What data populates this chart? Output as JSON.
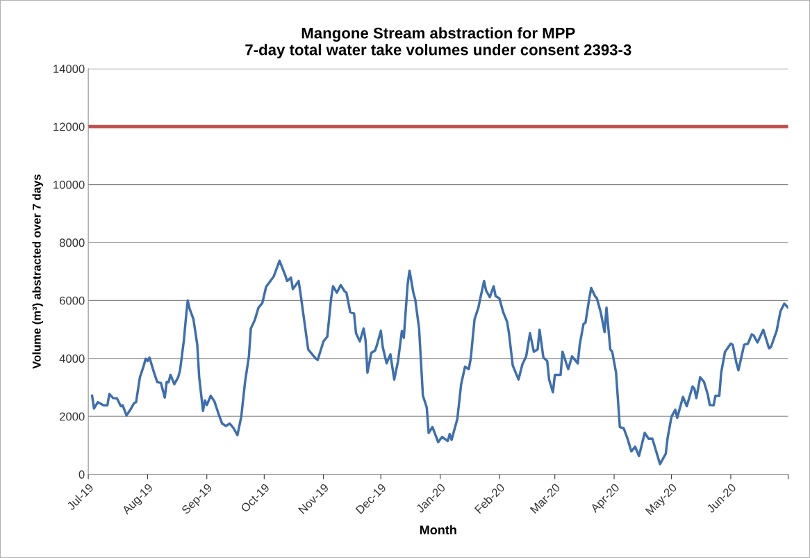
{
  "chart_data": {
    "type": "line",
    "title": "Mangone Stream abstraction for MPP\n7-day total water take volumes under consent 2393-3",
    "xlabel": "Month",
    "ylabel": "Volume (m³) abstracted over 7 days",
    "x": [
      "2019-07-03",
      "2019-07-04",
      "2019-07-06",
      "2019-07-09",
      "2019-07-11",
      "2019-07-12",
      "2019-07-14",
      "2019-07-16",
      "2019-07-18",
      "2019-07-19",
      "2019-07-21",
      "2019-07-23",
      "2019-07-25",
      "2019-07-26",
      "2019-07-28",
      "2019-07-30",
      "2019-07-31",
      "2019-08-01",
      "2019-08-02",
      "2019-08-04",
      "2019-08-06",
      "2019-08-08",
      "2019-08-10",
      "2019-08-11",
      "2019-08-12",
      "2019-08-13",
      "2019-08-15",
      "2019-08-17",
      "2019-08-18",
      "2019-08-20",
      "2019-08-21",
      "2019-08-22",
      "2019-08-23",
      "2019-08-25",
      "2019-08-27",
      "2019-08-28",
      "2019-08-30",
      "2019-08-31",
      "2019-09-01",
      "2019-09-03",
      "2019-09-05",
      "2019-09-07",
      "2019-09-09",
      "2019-09-11",
      "2019-09-13",
      "2019-09-15",
      "2019-09-17",
      "2019-09-19",
      "2019-09-21",
      "2019-09-23",
      "2019-09-24",
      "2019-09-26",
      "2019-09-28",
      "2019-09-30",
      "2019-10-02",
      "2019-10-06",
      "2019-10-09",
      "2019-10-12",
      "2019-10-13",
      "2019-10-15",
      "2019-10-16",
      "2019-10-19",
      "2019-10-20",
      "2019-10-24",
      "2019-10-28",
      "2019-10-29",
      "2019-11-01",
      "2019-11-03",
      "2019-11-05",
      "2019-11-06",
      "2019-11-08",
      "2019-11-10",
      "2019-11-12",
      "2019-11-13",
      "2019-11-15",
      "2019-11-17",
      "2019-11-18",
      "2019-11-20",
      "2019-11-22",
      "2019-11-23",
      "2019-11-24",
      "2019-11-26",
      "2019-11-28",
      "2019-11-29",
      "2019-12-01",
      "2019-12-02",
      "2019-12-04",
      "2019-12-06",
      "2019-12-08",
      "2019-12-10",
      "2019-12-12",
      "2019-12-13",
      "2019-12-15",
      "2019-12-16",
      "2019-12-18",
      "2019-12-19",
      "2019-12-21",
      "2019-12-23",
      "2019-12-25",
      "2019-12-26",
      "2019-12-28",
      "2019-12-31",
      "2020-01-02",
      "2020-01-05",
      "2020-01-06",
      "2020-01-07",
      "2020-01-10",
      "2020-01-12",
      "2020-01-14",
      "2020-01-16",
      "2020-01-17",
      "2020-01-19",
      "2020-01-21",
      "2020-01-22",
      "2020-01-24",
      "2020-01-25",
      "2020-01-27",
      "2020-01-29",
      "2020-01-30",
      "2020-02-01",
      "2020-02-03",
      "2020-02-05",
      "2020-02-06",
      "2020-02-08",
      "2020-02-11",
      "2020-02-13",
      "2020-02-15",
      "2020-02-17",
      "2020-02-19",
      "2020-02-21",
      "2020-02-22",
      "2020-02-24",
      "2020-02-26",
      "2020-02-27",
      "2020-02-29",
      "2020-03-01",
      "2020-03-04",
      "2020-03-05",
      "2020-03-08",
      "2020-03-10",
      "2020-03-13",
      "2020-03-14",
      "2020-03-16",
      "2020-03-17",
      "2020-03-19",
      "2020-03-20",
      "2020-03-22",
      "2020-03-23",
      "2020-03-25",
      "2020-03-27",
      "2020-03-28",
      "2020-03-30",
      "2020-03-31",
      "2020-04-02",
      "2020-04-04",
      "2020-04-06",
      "2020-04-08",
      "2020-04-10",
      "2020-04-12",
      "2020-04-14",
      "2020-04-17",
      "2020-04-19",
      "2020-04-21",
      "2020-04-23",
      "2020-04-25",
      "2020-04-28",
      "2020-04-29",
      "2020-05-01",
      "2020-05-03",
      "2020-05-04",
      "2020-05-07",
      "2020-05-09",
      "2020-05-12",
      "2020-05-13",
      "2020-05-14",
      "2020-05-16",
      "2020-05-18",
      "2020-05-20",
      "2020-05-21",
      "2020-05-23",
      "2020-05-24",
      "2020-05-26",
      "2020-05-27",
      "2020-05-29",
      "2020-06-01",
      "2020-06-02",
      "2020-06-04",
      "2020-06-05",
      "2020-06-08",
      "2020-06-10",
      "2020-06-12",
      "2020-06-13",
      "2020-06-15",
      "2020-06-18",
      "2020-06-21",
      "2020-06-22",
      "2020-06-25",
      "2020-06-27",
      "2020-06-29",
      "2020-07-01"
    ],
    "series": [
      {
        "color": "#3d6fb0",
        "values": [
          2710,
          2270,
          2490,
          2380,
          2380,
          2770,
          2630,
          2620,
          2350,
          2380,
          2030,
          2230,
          2460,
          2490,
          3350,
          3750,
          3990,
          3910,
          4030,
          3590,
          3190,
          3150,
          2650,
          3190,
          3180,
          3430,
          3110,
          3350,
          3590,
          4630,
          5350,
          6000,
          5710,
          5350,
          4470,
          3350,
          2190,
          2550,
          2390,
          2710,
          2510,
          2110,
          1750,
          1670,
          1750,
          1590,
          1350,
          1990,
          3190,
          4070,
          5030,
          5310,
          5750,
          5910,
          6470,
          6830,
          7370,
          6870,
          6670,
          6790,
          6390,
          6670,
          6230,
          4310,
          3990,
          3950,
          4590,
          4750,
          6070,
          6490,
          6270,
          6530,
          6320,
          6270,
          5590,
          5550,
          4870,
          4590,
          5030,
          4630,
          3510,
          4190,
          4270,
          4470,
          4950,
          4390,
          3830,
          4140,
          3270,
          3910,
          4950,
          4710,
          6550,
          7030,
          6270,
          6030,
          5030,
          2710,
          2310,
          1430,
          1630,
          1110,
          1290,
          1150,
          1390,
          1190,
          1910,
          3110,
          3710,
          3630,
          3990,
          5350,
          5750,
          6070,
          6670,
          6350,
          6110,
          6490,
          6150,
          6070,
          5590,
          5270,
          4870,
          3750,
          3270,
          3790,
          4070,
          4870,
          4230,
          4310,
          4990,
          4030,
          3910,
          3270,
          2830,
          3430,
          3430,
          4230,
          3630,
          4070,
          3830,
          4470,
          5190,
          5230,
          6070,
          6430,
          6150,
          6070,
          5590,
          4910,
          5750,
          4310,
          4230,
          3510,
          1630,
          1590,
          1230,
          790,
          950,
          630,
          1430,
          1230,
          1230,
          790,
          350,
          710,
          1270,
          1990,
          2230,
          1950,
          2670,
          2350,
          3030,
          2950,
          2630,
          3350,
          3190,
          2750,
          2390,
          2380,
          2710,
          2710,
          3510,
          4230,
          4510,
          4470,
          3830,
          3590,
          4470,
          4510,
          4830,
          4790,
          4550,
          4990,
          4350,
          4390,
          4950,
          5630,
          5890,
          5750
        ]
      }
    ],
    "ref_lines": [
      {
        "axis": "y",
        "value": 12000,
        "color": "#c0504d"
      }
    ],
    "xlim": [
      "2019-07-01",
      "2020-07-01"
    ],
    "xticks": [
      {
        "value": "2019-07-01",
        "label": "Jul-19"
      },
      {
        "value": "2019-08-01",
        "label": "Aug-19"
      },
      {
        "value": "2019-09-01",
        "label": "Sep-19"
      },
      {
        "value": "2019-10-01",
        "label": "Oct-19"
      },
      {
        "value": "2019-11-01",
        "label": "Nov-19"
      },
      {
        "value": "2019-12-01",
        "label": "Dec-19"
      },
      {
        "value": "2020-01-01",
        "label": "Jan-20"
      },
      {
        "value": "2020-02-01",
        "label": "Feb-20"
      },
      {
        "value": "2020-03-01",
        "label": "Mar-20"
      },
      {
        "value": "2020-04-01",
        "label": "Apr-20"
      },
      {
        "value": "2020-05-01",
        "label": "May-20"
      },
      {
        "value": "2020-06-01",
        "label": "Jun-20"
      },
      {
        "value": "2020-07-01",
        "label": null
      }
    ],
    "ylim": [
      0,
      14000
    ],
    "yticks": [
      0,
      2000,
      4000,
      6000,
      8000,
      10000,
      12000,
      14000
    ],
    "grid": "y",
    "marker": "none",
    "line_style": "solid"
  }
}
